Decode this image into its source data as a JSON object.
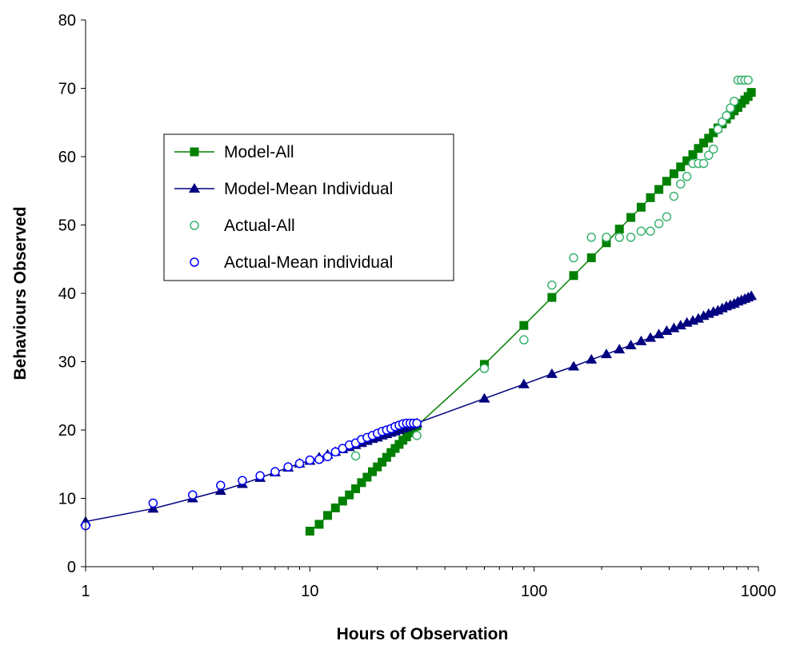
{
  "chart_data": {
    "type": "scatter",
    "xlabel": "Hours of Observation",
    "ylabel": "Behaviours Observed",
    "xscale": "log",
    "xlim": [
      1,
      1000
    ],
    "ylim": [
      0,
      80
    ],
    "x_ticks": [
      "1",
      "10",
      "100",
      "1000"
    ],
    "y_ticks": [
      "0",
      "10",
      "20",
      "30",
      "40",
      "50",
      "60",
      "70",
      "80"
    ],
    "grid": false,
    "legend_position": "upper-left inside plot",
    "colors": {
      "model_all": "#008000",
      "model_mean": "#000080",
      "actual_all": "#3CB371",
      "actual_mean": "#0000FF"
    },
    "series": [
      {
        "name": "Model-All",
        "style": "line-square-markers",
        "x": [
          10,
          11,
          12,
          13,
          14,
          15,
          16,
          17,
          18,
          19,
          20,
          21,
          22,
          23,
          24,
          25,
          26,
          27,
          28,
          29,
          30,
          60,
          90,
          120,
          150,
          180,
          210,
          240,
          270,
          300,
          330,
          360,
          390,
          420,
          450,
          480,
          510,
          540,
          570,
          600,
          630,
          660,
          690,
          720,
          750,
          780,
          810,
          840,
          870,
          900,
          930
        ],
        "y": [
          5.2,
          6.2,
          7.5,
          8.6,
          9.6,
          10.5,
          11.4,
          12.3,
          13.1,
          13.9,
          14.6,
          15.3,
          16.0,
          16.7,
          17.3,
          17.9,
          18.5,
          19.0,
          19.6,
          20.1,
          20.6,
          29.6,
          35.3,
          39.4,
          42.6,
          45.2,
          47.4,
          49.4,
          51.1,
          52.6,
          54.0,
          55.2,
          56.4,
          57.5,
          58.5,
          59.4,
          60.3,
          61.2,
          62.0,
          62.7,
          63.5,
          64.2,
          64.8,
          65.5,
          66.1,
          66.7,
          67.2,
          67.8,
          68.3,
          68.8,
          69.4
        ]
      },
      {
        "name": "Model-Mean Individual",
        "style": "line-triangle-markers",
        "x": [
          1,
          2,
          3,
          4,
          5,
          6,
          7,
          8,
          9,
          10,
          11,
          12,
          13,
          14,
          15,
          16,
          17,
          18,
          19,
          20,
          21,
          22,
          23,
          24,
          25,
          26,
          27,
          28,
          29,
          30,
          60,
          90,
          120,
          150,
          180,
          210,
          240,
          270,
          300,
          330,
          360,
          390,
          420,
          450,
          480,
          510,
          540,
          570,
          600,
          630,
          660,
          690,
          720,
          750,
          780,
          810,
          840,
          870,
          900,
          930
        ],
        "y": [
          6.6,
          8.5,
          10.0,
          11.1,
          12.1,
          13.0,
          13.8,
          14.5,
          15.1,
          15.5,
          16.0,
          16.4,
          16.8,
          17.2,
          17.5,
          17.8,
          18.1,
          18.4,
          18.7,
          18.9,
          19.2,
          19.4,
          19.6,
          19.8,
          20.0,
          20.2,
          20.4,
          20.6,
          20.8,
          21.0,
          24.6,
          26.7,
          28.2,
          29.3,
          30.3,
          31.1,
          31.8,
          32.4,
          33.0,
          33.5,
          34.0,
          34.5,
          34.9,
          35.3,
          35.7,
          36.0,
          36.3,
          36.7,
          37.0,
          37.3,
          37.5,
          37.8,
          38.1,
          38.3,
          38.5,
          38.8,
          39.0,
          39.2,
          39.4,
          39.6
        ]
      },
      {
        "name": "Actual-All",
        "style": "open-circle",
        "x": [
          16,
          30,
          60,
          90,
          120,
          150,
          180,
          210,
          240,
          270,
          300,
          330,
          360,
          390,
          420,
          450,
          480,
          510,
          540,
          570,
          600,
          630,
          660,
          690,
          720,
          750,
          780,
          810,
          840,
          870,
          900
        ],
        "y": [
          16.2,
          19.2,
          29.0,
          33.2,
          41.2,
          45.2,
          48.2,
          48.2,
          48.2,
          48.2,
          49.1,
          49.1,
          50.2,
          51.2,
          54.2,
          56.0,
          57.1,
          59.0,
          59.0,
          59.0,
          60.2,
          61.1,
          64.0,
          65.1,
          66.0,
          67.1,
          68.1,
          71.2,
          71.2,
          71.2,
          71.2
        ]
      },
      {
        "name": "Actual-Mean individual",
        "style": "open-circle",
        "x": [
          1,
          2,
          3,
          4,
          5,
          6,
          7,
          8,
          9,
          10,
          11,
          12,
          13,
          14,
          15,
          16,
          17,
          18,
          19,
          20,
          21,
          22,
          23,
          24,
          25,
          26,
          27,
          28,
          29,
          30
        ],
        "y": [
          6.0,
          9.3,
          10.5,
          11.9,
          12.6,
          13.3,
          13.9,
          14.6,
          15.1,
          15.6,
          15.7,
          16.1,
          16.8,
          17.3,
          17.8,
          18.1,
          18.6,
          18.9,
          19.2,
          19.5,
          19.8,
          20.0,
          20.2,
          20.5,
          20.7,
          20.9,
          21.0,
          21.0,
          21.0,
          21.0
        ]
      }
    ]
  }
}
